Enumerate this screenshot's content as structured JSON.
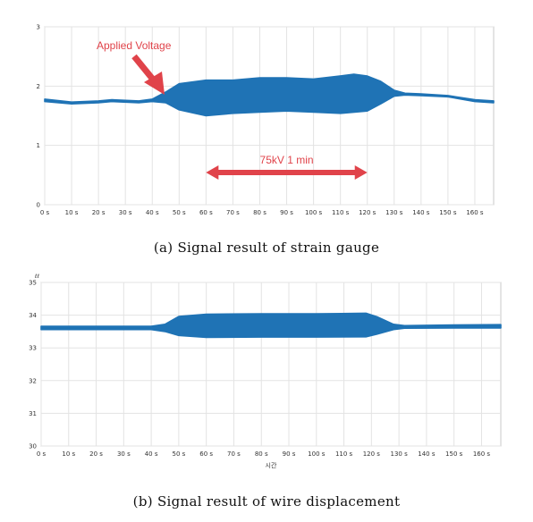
{
  "chart_data": [
    {
      "type": "area",
      "caption": "(a) Signal result of strain gauge",
      "x_ticks": [
        "0 s",
        "10 s",
        "20 s",
        "30 s",
        "40 s",
        "50 s",
        "60 s",
        "70 s",
        "80 s",
        "90 s",
        "100 s",
        "110 s",
        "120 s",
        "130 s",
        "140 s",
        "150 s",
        "160 s"
      ],
      "y_ticks": [
        "0",
        "1",
        "2",
        "3"
      ],
      "xlim": [
        0,
        167
      ],
      "ylim": [
        0,
        3
      ],
      "grid": true,
      "color": "#1f73b5",
      "upper": [
        [
          0,
          1.78
        ],
        [
          10,
          1.73
        ],
        [
          20,
          1.75
        ],
        [
          25,
          1.77
        ],
        [
          35,
          1.75
        ],
        [
          40,
          1.78
        ],
        [
          45,
          1.9
        ],
        [
          50,
          2.04
        ],
        [
          60,
          2.1
        ],
        [
          70,
          2.1
        ],
        [
          80,
          2.14
        ],
        [
          90,
          2.14
        ],
        [
          100,
          2.12
        ],
        [
          108,
          2.16
        ],
        [
          115,
          2.2
        ],
        [
          120,
          2.17
        ],
        [
          125,
          2.08
        ],
        [
          130,
          1.93
        ],
        [
          134,
          1.88
        ],
        [
          140,
          1.87
        ],
        [
          150,
          1.84
        ],
        [
          160,
          1.77
        ],
        [
          167,
          1.75
        ]
      ],
      "lower": [
        [
          0,
          1.74
        ],
        [
          10,
          1.7
        ],
        [
          20,
          1.72
        ],
        [
          25,
          1.74
        ],
        [
          35,
          1.72
        ],
        [
          40,
          1.74
        ],
        [
          45,
          1.72
        ],
        [
          50,
          1.6
        ],
        [
          60,
          1.5
        ],
        [
          70,
          1.54
        ],
        [
          80,
          1.56
        ],
        [
          90,
          1.58
        ],
        [
          100,
          1.56
        ],
        [
          110,
          1.54
        ],
        [
          120,
          1.58
        ],
        [
          125,
          1.7
        ],
        [
          130,
          1.83
        ],
        [
          134,
          1.85
        ],
        [
          140,
          1.84
        ],
        [
          150,
          1.82
        ],
        [
          160,
          1.74
        ],
        [
          167,
          1.72
        ]
      ],
      "annotations": {
        "applied_voltage": "Applied Voltage",
        "duration": "75kV 1 min",
        "duration_range": [
          60,
          120
        ]
      }
    },
    {
      "type": "area",
      "caption": "(b) Signal result of wire displacement",
      "x_ticks": [
        "0 s",
        "10 s",
        "20 s",
        "30 s",
        "40 s",
        "50 s",
        "60 s",
        "70 s",
        "80 s",
        "90 s",
        "100 s",
        "110 s",
        "120 s",
        "130 s",
        "140 s",
        "150 s",
        "160 s"
      ],
      "y_ticks": [
        "30",
        "31",
        "32",
        "33",
        "34",
        "35"
      ],
      "y_unit": "ℓℓ",
      "xlabel": "시간",
      "xlim": [
        0,
        167
      ],
      "ylim": [
        30,
        35
      ],
      "grid": true,
      "color": "#1f73b5",
      "upper": [
        [
          0,
          33.66
        ],
        [
          20,
          33.66
        ],
        [
          40,
          33.66
        ],
        [
          45,
          33.72
        ],
        [
          50,
          33.96
        ],
        [
          60,
          34.03
        ],
        [
          80,
          34.04
        ],
        [
          100,
          34.04
        ],
        [
          118,
          34.06
        ],
        [
          122,
          33.95
        ],
        [
          128,
          33.72
        ],
        [
          132,
          33.68
        ],
        [
          150,
          33.7
        ],
        [
          167,
          33.71
        ]
      ],
      "lower": [
        [
          0,
          33.56
        ],
        [
          20,
          33.56
        ],
        [
          40,
          33.56
        ],
        [
          45,
          33.5
        ],
        [
          50,
          33.38
        ],
        [
          60,
          33.32
        ],
        [
          80,
          33.33
        ],
        [
          100,
          33.33
        ],
        [
          118,
          33.34
        ],
        [
          122,
          33.42
        ],
        [
          128,
          33.56
        ],
        [
          132,
          33.6
        ],
        [
          150,
          33.61
        ],
        [
          167,
          33.61
        ]
      ]
    }
  ]
}
